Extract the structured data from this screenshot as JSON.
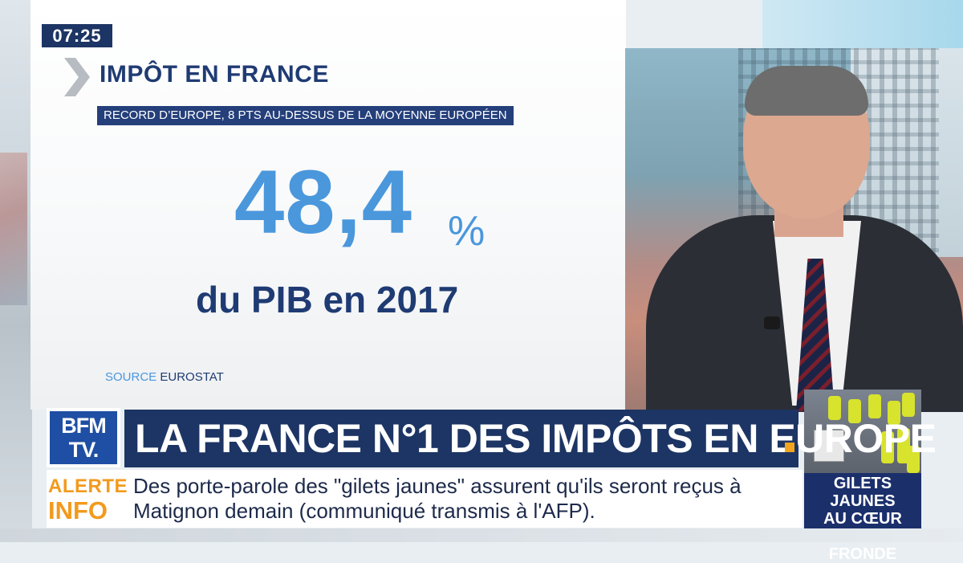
{
  "clock": "07:25",
  "infographic": {
    "title": "IMPÔT EN FRANCE",
    "subtitle": "RECORD D’EUROPE, 8 PTS AU-DESSUS DE LA MOYENNE EUROPÉEN",
    "value": "48,4",
    "unit": "%",
    "caption": "du PIB en 2017",
    "source_label": "SOURCE",
    "source_name": "EUROSTAT"
  },
  "channel": {
    "logo_line1": "BFM",
    "logo_line2": "TV."
  },
  "headline": "LA FRANCE N°1 DES IMPÔTS EN EUROPE",
  "alert": {
    "label_line1": "ALERTE",
    "label_line2": "INFO",
    "text_line1": "Des porte-parole des \"gilets jaunes\" assurent qu'ils seront reçus à",
    "text_line2": "Matignon demain (communiqué transmis à l'AFP)."
  },
  "sidebar_thumb": {
    "line1": "GILETS JAUNES",
    "line2": "AU CŒUR",
    "line3": "DE LA FRONDE"
  },
  "colors": {
    "navy": "#1d3564",
    "accent_blue": "#4a97dc",
    "alert_orange": "#f29a1d",
    "logo_blue": "#1f4fa4"
  }
}
